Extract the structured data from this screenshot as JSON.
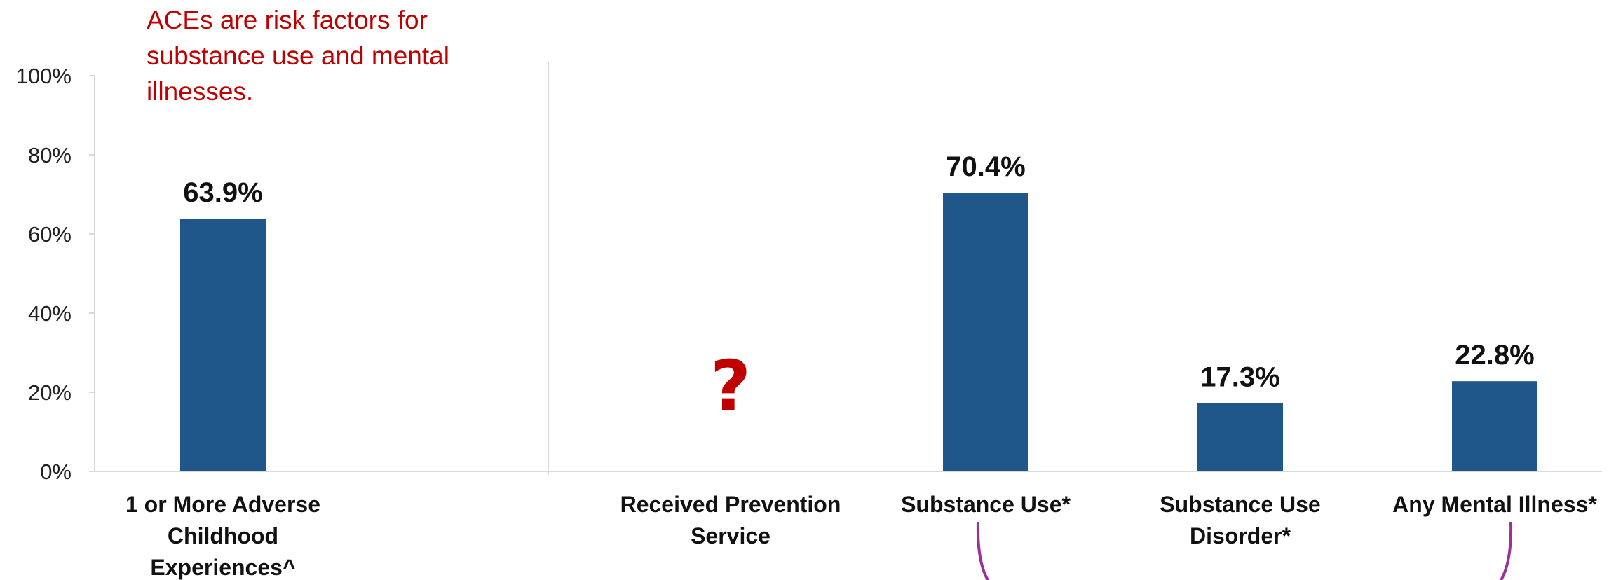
{
  "chart_data": {
    "type": "bar",
    "categories": [
      "1 or More Adverse Childhood Experiences^",
      "Received Prevention Service",
      "Substance Use*",
      "Substance Use Disorder*",
      "Any Mental Illness*"
    ],
    "category_lines": [
      [
        "1 or More Adverse",
        "Childhood",
        "Experiences^"
      ],
      [
        "Received Prevention",
        "Service"
      ],
      [
        "Substance Use*"
      ],
      [
        "Substance Use",
        "Disorder*"
      ],
      [
        "Any Mental Illness*"
      ]
    ],
    "values": [
      63.9,
      null,
      70.4,
      17.3,
      22.8
    ],
    "data_labels": [
      "63.9%",
      "?",
      "70.4%",
      "17.3%",
      "22.8%"
    ],
    "yticks": [
      "0%",
      "20%",
      "40%",
      "60%",
      "80%",
      "100%"
    ],
    "ylim": [
      0,
      100
    ],
    "annotation_lines": [
      "ACEs are risk factors for",
      "substance use and mental",
      "illnesses."
    ],
    "title": "",
    "xlabel": "",
    "ylabel": "",
    "grid": false,
    "legend": "none",
    "colors": {
      "bar": "#1f578b",
      "annotation": "#c00000",
      "axis": "#d9d9d9",
      "bracket": "#9b2f9b"
    }
  }
}
